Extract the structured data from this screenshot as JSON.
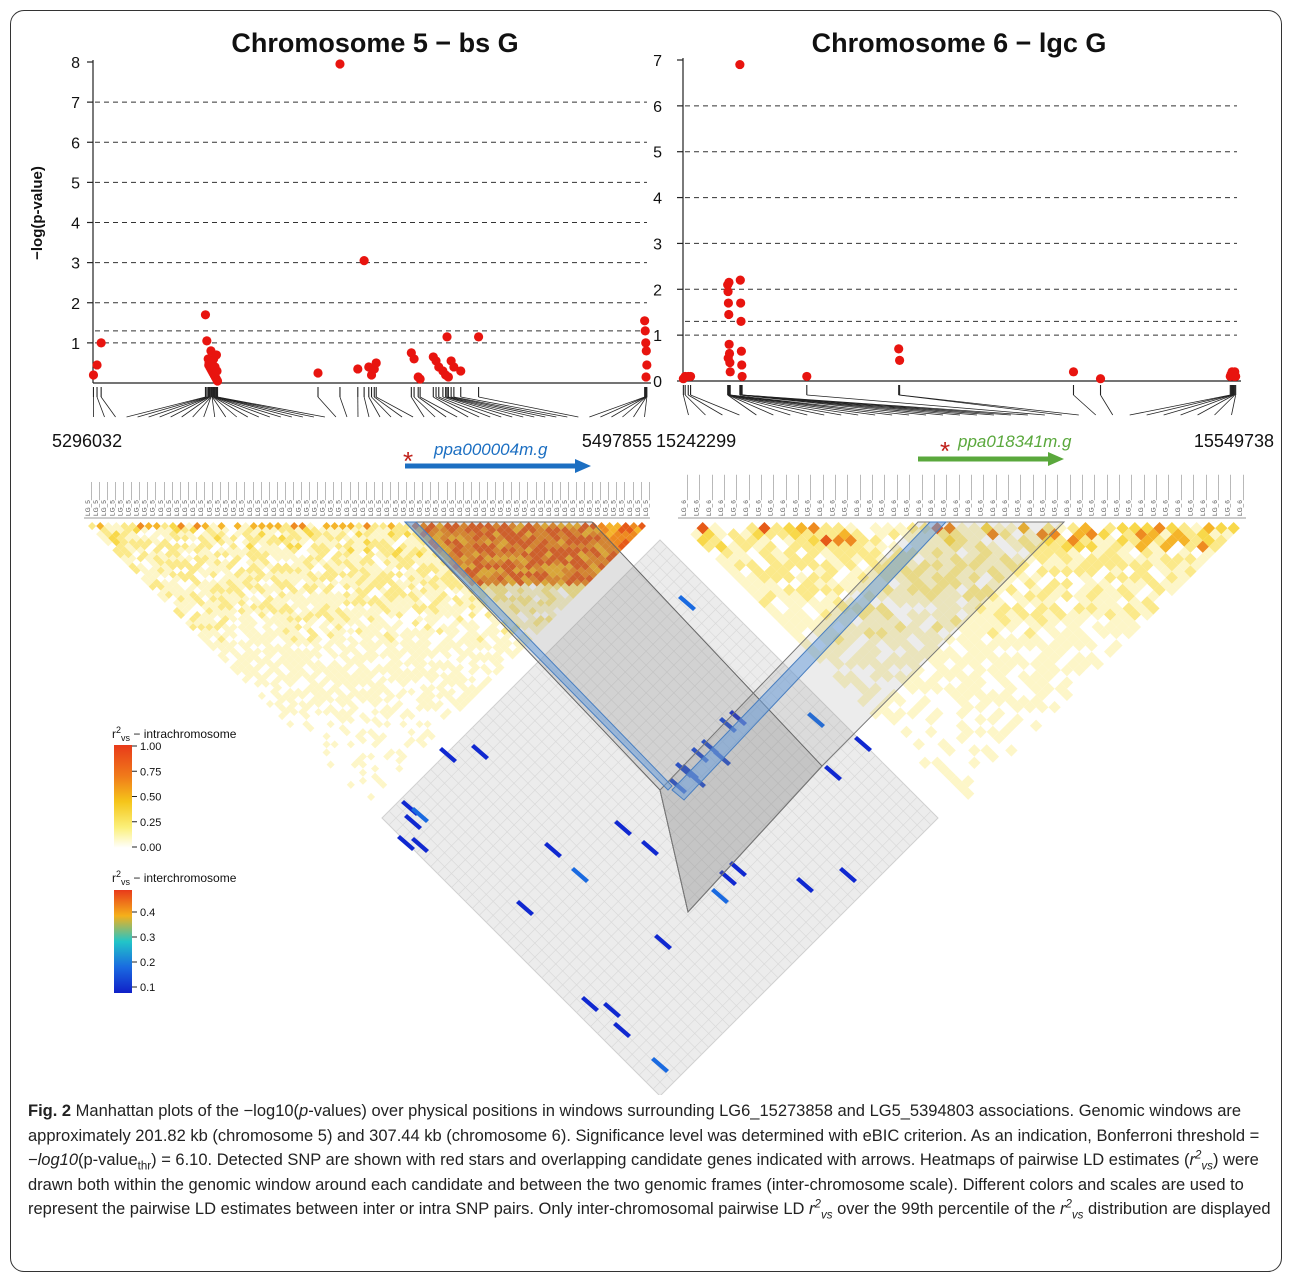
{
  "chart_data": [
    {
      "type": "scatter",
      "title": "Chromosome 5 − bs G",
      "ylabel": "−log(p-value)",
      "ylim": [
        0,
        8
      ],
      "yticks": [
        "1",
        "2",
        "3",
        "4",
        "5",
        "6",
        "7",
        "8"
      ],
      "grid_lines_y": [
        1,
        1.3,
        2,
        3,
        4,
        5,
        6,
        7
      ],
      "x_start_label": "5296032",
      "x_end_label": "5497855",
      "x": [
        5296200,
        5297500,
        5299000,
        5337000,
        5337500,
        5338000,
        5338300,
        5338600,
        5339000,
        5339400,
        5339800,
        5340200,
        5340600,
        5341000,
        5341400,
        5338200,
        5339000,
        5340000,
        5341000,
        5339500,
        5340500,
        5341200,
        5378000,
        5386000,
        5392500,
        5394803,
        5396500,
        5397500,
        5398500,
        5399200,
        5412000,
        5413000,
        5414500,
        5415200,
        5420000,
        5421000,
        5422000,
        5423500,
        5424500,
        5425500,
        5426500,
        5425000,
        5427500,
        5430000,
        5436500,
        5497000,
        5497200,
        5497400,
        5497600,
        5497800,
        5497500
      ],
      "y": [
        0.2,
        0.45,
        1.0,
        1.7,
        1.05,
        0.6,
        0.5,
        0.4,
        0.35,
        0.3,
        0.25,
        0.2,
        0.15,
        0.1,
        0.05,
        0.45,
        0.8,
        0.6,
        0.7,
        0.55,
        0.4,
        0.3,
        0.25,
        7.95,
        0.35,
        3.05,
        0.4,
        0.2,
        0.35,
        0.5,
        0.75,
        0.6,
        0.15,
        0.1,
        0.65,
        0.55,
        0.4,
        0.3,
        0.2,
        0.15,
        0.55,
        1.15,
        0.4,
        0.3,
        1.15,
        1.55,
        1.3,
        1.0,
        0.8,
        0.45,
        0.15
      ],
      "annotations": [
        {
          "gene": "ppa000004m.g",
          "color": "#1c6fc2",
          "marker": "*"
        }
      ]
    },
    {
      "type": "scatter",
      "title": "Chromosome 6 − lgc G",
      "ylim": [
        0,
        7
      ],
      "yticks": [
        "0",
        "1",
        "2",
        "3",
        "4",
        "5",
        "6",
        "7"
      ],
      "grid_lines_y": [
        1,
        1.3,
        2,
        3,
        4,
        5,
        6
      ],
      "x_start_label": "15242299",
      "x_end_label": "15549738",
      "x": [
        15242500,
        15243500,
        15245210,
        15246500,
        15267100,
        15267300,
        15267500,
        15267700,
        15267900,
        15268100,
        15268300,
        15268500,
        15267400,
        15267800,
        15273858,
        15274100,
        15274300,
        15274500,
        15274700,
        15274900,
        15275100,
        15311000,
        15362000,
        15362500,
        15459000,
        15474000,
        15546000,
        15546500,
        15547000,
        15547500,
        15548000,
        15548500,
        15549000
      ],
      "y": [
        0.05,
        0.1,
        0.1,
        0.1,
        2.1,
        1.95,
        1.7,
        1.45,
        0.8,
        0.6,
        0.4,
        0.2,
        0.5,
        2.15,
        6.9,
        2.2,
        1.7,
        1.3,
        0.65,
        0.35,
        0.1,
        0.1,
        0.7,
        0.45,
        0.2,
        0.05,
        0.1,
        0.15,
        0.2,
        0.15,
        0.1,
        0.2,
        0.1
      ],
      "annotations": [
        {
          "gene": "ppa018341m.g",
          "color": "#5aa83c",
          "marker": "*"
        }
      ]
    },
    {
      "type": "heatmap",
      "legends": [
        {
          "title_r": "r",
          "title_sup": "2",
          "title_sub": "vs",
          "title_rest": " − intrachromosome",
          "ticks": [
            "1.00",
            "0.75",
            "0.50",
            "0.25",
            "0.00"
          ]
        },
        {
          "title_r": "r",
          "title_sup": "2",
          "title_sub": "vs",
          "title_rest": " − interchromosome",
          "ticks": [
            "0.4",
            "0.3",
            "0.2",
            "0.1"
          ]
        }
      ]
    }
  ],
  "caption": {
    "fig_label": "Fig. 2",
    "part1": " Manhattan plots of the −log10(",
    "p": "p",
    "part2": "-values) over physical positions in windows surrounding LG6_15273858 and LG5_5394803 associations. Genomic windows are approximately 201.82 kb (chromosome 5) and 307.44 kb (chromosome 6). Significance level was determined with eBIC criterion. As an indication, Bonferroni threshold = −",
    "log10": "log10",
    "part3": "(p-value",
    "thr": "thr",
    "part4": ") = 6.10. Detected SNP are shown with red stars and overlapping candidate genes indicated with arrows. Heatmaps of pairwise LD estimates (",
    "part5": ")  were drawn both within the genomic window around each candidate and between the two genomic frames (inter-chromosome scale). Different colors and scales are used to represent the pairwise LD estimates between inter or intra SNP pairs. Only inter-chromosomal pairwise LD ",
    "part6": " over the 99th percentile of the ",
    "part7": " distribution are displayed",
    "r": "r",
    "sq": "2",
    "vs": "vs"
  }
}
